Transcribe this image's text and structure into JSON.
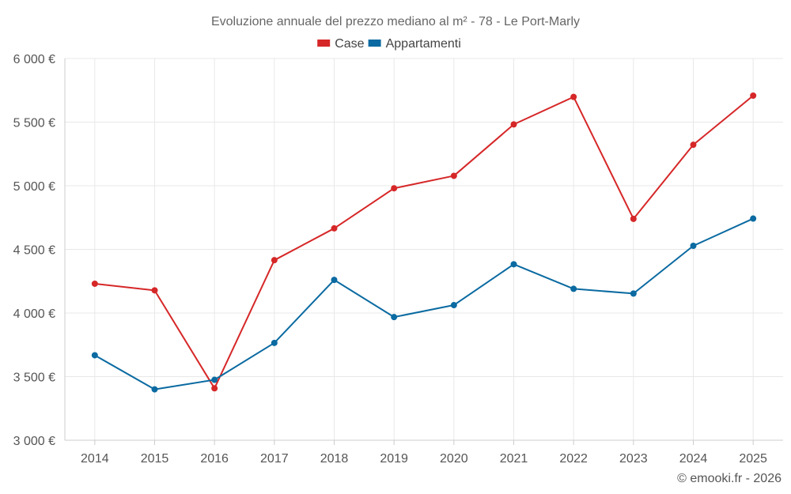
{
  "chart_data": {
    "type": "line",
    "title": "Evoluzione annuale del prezzo mediano al m² - 78 - Le Port-Marly",
    "categories": [
      "2014",
      "2015",
      "2016",
      "2017",
      "2018",
      "2019",
      "2020",
      "2021",
      "2022",
      "2023",
      "2024",
      "2025"
    ],
    "series": [
      {
        "name": "Case",
        "color": "#d62728",
        "values": [
          4230,
          4178,
          3408,
          4415,
          4665,
          4980,
          5078,
          5482,
          5698,
          4740,
          5322,
          5708
        ]
      },
      {
        "name": "Appartamenti",
        "color": "#0a6aa1",
        "values": [
          3668,
          3400,
          3475,
          3765,
          4260,
          3968,
          4062,
          4383,
          4190,
          4153,
          4528,
          4742
        ]
      }
    ],
    "ylim": [
      3000,
      6000
    ],
    "yticks": [
      3000,
      3500,
      4000,
      4500,
      5000,
      5500,
      6000
    ],
    "ytick_labels": [
      "3 000 €",
      "3 500 €",
      "4 000 €",
      "4 500 €",
      "5 000 €",
      "5 500 €",
      "6 000 €"
    ],
    "xlabel": "",
    "ylabel": "",
    "legend_position": "top-center",
    "grid": true
  },
  "credit": "© emooki.fr - 2026"
}
